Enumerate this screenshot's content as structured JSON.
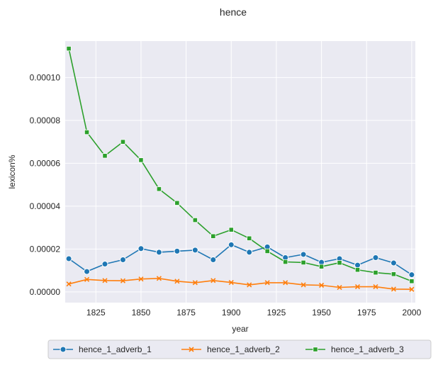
{
  "chart_data": {
    "type": "line",
    "title": "hence",
    "xlabel": "year",
    "ylabel": "lexicon%",
    "xlim": [
      1808,
      2002
    ],
    "ylim": [
      -5e-06,
      0.000117
    ],
    "xticks": [
      1825,
      1850,
      1875,
      1900,
      1925,
      1950,
      1975,
      2000
    ],
    "yticks": [
      0.0,
      2e-05,
      4e-05,
      6e-05,
      8e-05,
      0.0001
    ],
    "ytick_labels": [
      "0.00000",
      "0.00002",
      "0.00004",
      "0.00006",
      "0.00008",
      "0.00010"
    ],
    "grid": true,
    "legend_position": "bottom-center",
    "x": [
      1810,
      1820,
      1830,
      1840,
      1850,
      1860,
      1870,
      1880,
      1890,
      1900,
      1910,
      1920,
      1930,
      1940,
      1950,
      1960,
      1970,
      1980,
      1990,
      2000
    ],
    "series": [
      {
        "name": "hence_1_adverb_1",
        "color": "#1f77b4",
        "marker": "circle",
        "values": [
          1.55e-05,
          9.5e-06,
          1.3e-05,
          1.5e-05,
          2.02e-05,
          1.85e-05,
          1.9e-05,
          1.95e-05,
          1.5e-05,
          2.2e-05,
          1.85e-05,
          2.1e-05,
          1.6e-05,
          1.75e-05,
          1.38e-05,
          1.55e-05,
          1.25e-05,
          1.6e-05,
          1.35e-05,
          8e-06
        ]
      },
      {
        "name": "hence_1_adverb_2",
        "color": "#ff7f0e",
        "marker": "x",
        "values": [
          3.7e-06,
          5.8e-06,
          5.3e-06,
          5.2e-06,
          6e-06,
          6.3e-06,
          5e-06,
          4.3e-06,
          5.3e-06,
          4.4e-06,
          3.3e-06,
          4.3e-06,
          4.3e-06,
          3.3e-06,
          3.1e-06,
          2.1e-06,
          2.4e-06,
          2.4e-06,
          1.3e-06,
          1.2e-06
        ]
      },
      {
        "name": "hence_1_adverb_3",
        "color": "#2ca02c",
        "marker": "square",
        "values": [
          0.0001135,
          7.45e-05,
          6.35e-05,
          7e-05,
          6.15e-05,
          4.8e-05,
          4.15e-05,
          3.35e-05,
          2.6e-05,
          2.9e-05,
          2.5e-05,
          1.9e-05,
          1.4e-05,
          1.37e-05,
          1.18e-05,
          1.36e-05,
          1.03e-05,
          9e-06,
          8.3e-06,
          5e-06
        ]
      }
    ]
  }
}
